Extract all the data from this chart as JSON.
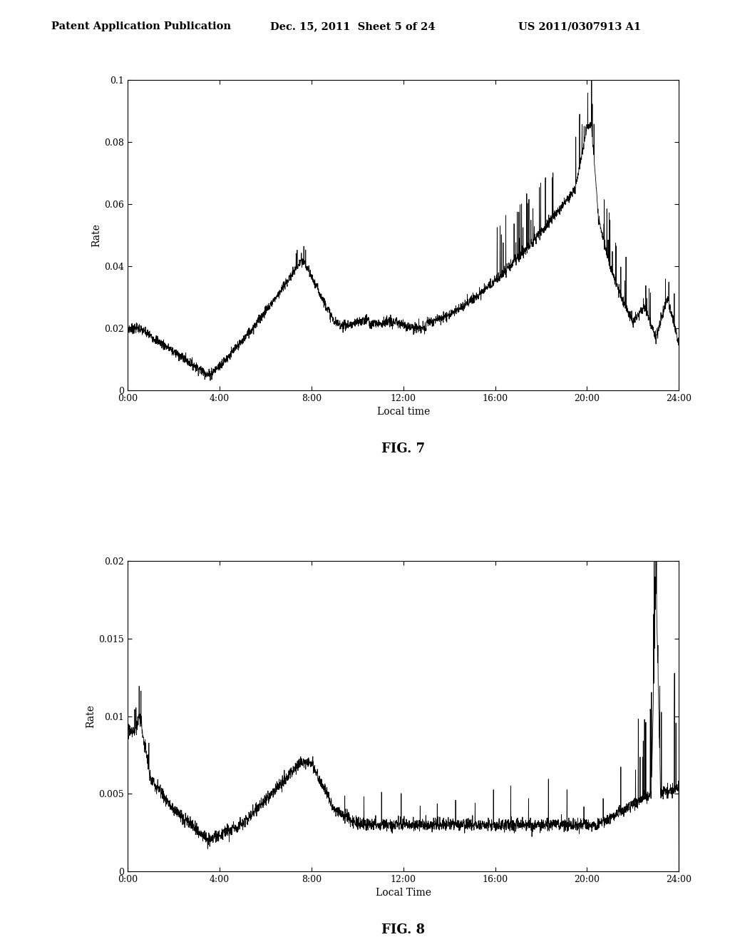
{
  "header_left": "Patent Application Publication",
  "header_mid": "Dec. 15, 2011  Sheet 5 of 24",
  "header_right": "US 2011/0307913 A1",
  "fig7_label": "FIG. 7",
  "fig8_label": "FIG. 8",
  "fig7_xlabel": "Local time",
  "fig8_xlabel": "Local Time",
  "fig7_ylabel": "Rate",
  "fig8_ylabel": "Rate",
  "fig7_yticks": [
    0,
    0.02,
    0.04,
    0.06,
    0.08,
    0.1
  ],
  "fig8_yticks": [
    0,
    0.005,
    0.01,
    0.015,
    0.02
  ],
  "xticks": [
    0,
    4,
    8,
    12,
    16,
    20,
    24
  ],
  "xtick_labels": [
    "0:00",
    "4:00",
    "8:00",
    "12:00",
    "16:00",
    "20:00",
    "24:00"
  ],
  "fig7_ylim": [
    0,
    0.1
  ],
  "fig8_ylim": [
    0,
    0.02
  ],
  "xlim": [
    0,
    24
  ],
  "background_color": "#ffffff",
  "line_color": "#000000"
}
